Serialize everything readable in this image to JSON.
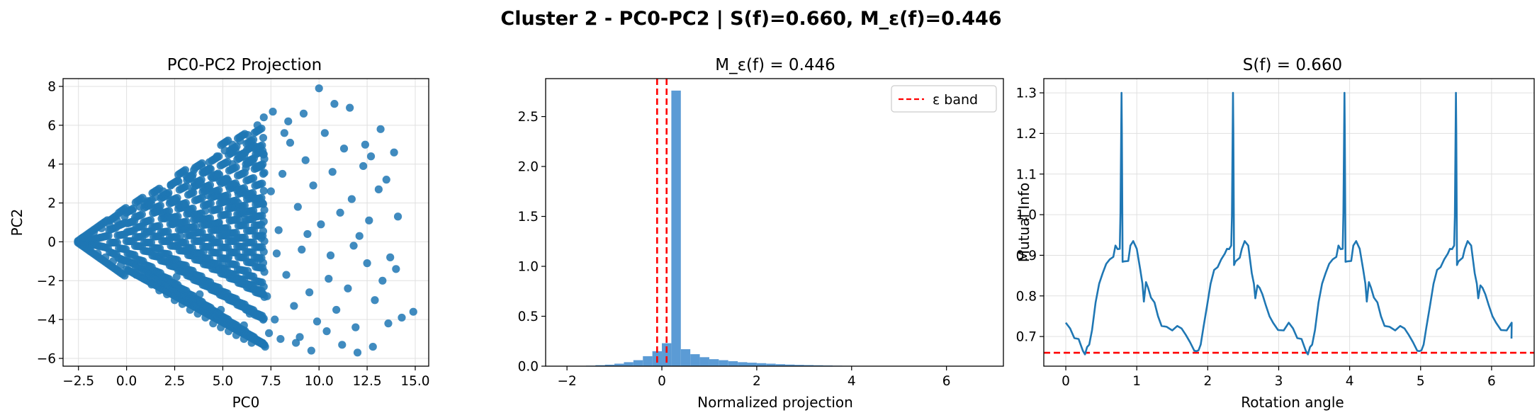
{
  "figure": {
    "title": "Cluster 2 - PC0-PC2 | S(f)=0.660, M_ε(f)=0.446"
  },
  "colors": {
    "series": "#1f77b4",
    "hist": "#5b9bd5",
    "reference": "#ff0000",
    "grid": "#e0e0e0"
  },
  "chart_data": [
    {
      "type": "scatter",
      "title": "PC0-PC2 Projection",
      "xlabel": "PC0",
      "ylabel": "PC2",
      "xlim": [
        -3.3,
        15.7
      ],
      "ylim": [
        -6.4,
        8.4
      ],
      "xticks": [
        -2.5,
        0.0,
        2.5,
        5.0,
        7.5,
        10.0,
        12.5,
        15.0
      ],
      "xtick_labels": [
        "−2.5",
        "0.0",
        "2.5",
        "5.0",
        "7.5",
        "10.0",
        "12.5",
        "15.0"
      ],
      "yticks": [
        -6,
        -4,
        -2,
        0,
        2,
        4,
        6,
        8
      ],
      "ytick_labels": [
        "−6",
        "−4",
        "−2",
        "0",
        "2",
        "4",
        "6",
        "8"
      ],
      "grid": true,
      "points": [
        [
          -2.5,
          0.0
        ],
        [
          -2.3,
          0.2
        ],
        [
          -2.2,
          -0.2
        ],
        [
          -2.0,
          0.3
        ],
        [
          -1.9,
          -0.35
        ],
        [
          -1.7,
          0.5
        ],
        [
          -1.5,
          -0.6
        ],
        [
          -1.3,
          0.7
        ],
        [
          -1.1,
          -0.8
        ],
        [
          -0.9,
          0.9
        ],
        [
          -0.7,
          -1.0
        ],
        [
          -0.5,
          1.1
        ],
        [
          -0.3,
          -1.2
        ],
        [
          -0.1,
          1.3
        ],
        [
          0.1,
          -1.5
        ],
        [
          0.3,
          1.6
        ],
        [
          0.5,
          -1.7
        ],
        [
          0.7,
          1.8
        ],
        [
          0.9,
          -1.9
        ],
        [
          1.1,
          2.1
        ],
        [
          1.3,
          -2.2
        ],
        [
          1.5,
          2.3
        ],
        [
          1.7,
          -2.5
        ],
        [
          1.9,
          2.6
        ],
        [
          2.1,
          -2.7
        ],
        [
          2.3,
          2.9
        ],
        [
          2.5,
          -3.0
        ],
        [
          2.7,
          3.1
        ],
        [
          2.9,
          -3.2
        ],
        [
          3.1,
          3.4
        ],
        [
          3.3,
          -3.5
        ],
        [
          3.5,
          3.7
        ],
        [
          3.7,
          -3.7
        ],
        [
          3.9,
          3.9
        ],
        [
          4.1,
          -3.9
        ],
        [
          4.3,
          4.1
        ],
        [
          4.5,
          -4.2
        ],
        [
          4.7,
          4.4
        ],
        [
          4.9,
          -4.4
        ],
        [
          5.1,
          4.7
        ],
        [
          5.3,
          -4.6
        ],
        [
          5.5,
          5.0
        ],
        [
          5.7,
          -4.8
        ],
        [
          5.9,
          5.2
        ],
        [
          6.1,
          -5.0
        ],
        [
          6.3,
          5.5
        ],
        [
          6.5,
          -5.2
        ],
        [
          6.8,
          6.0
        ],
        [
          7.2,
          -5.4
        ],
        [
          7.6,
          6.7
        ],
        [
          8.0,
          -5.0
        ],
        [
          8.4,
          6.2
        ],
        [
          8.8,
          -5.2
        ],
        [
          9.2,
          6.6
        ],
        [
          9.6,
          -5.6
        ],
        [
          10.0,
          7.9
        ],
        [
          10.4,
          -4.6
        ],
        [
          10.8,
          7.1
        ],
        [
          11.2,
          -5.3
        ],
        [
          11.6,
          6.9
        ],
        [
          12.0,
          -5.7
        ],
        [
          12.4,
          5.0
        ],
        [
          12.8,
          -5.4
        ],
        [
          13.2,
          5.8
        ],
        [
          13.6,
          -4.2
        ],
        [
          13.9,
          4.6
        ],
        [
          14.0,
          -1.4
        ],
        [
          14.1,
          1.3
        ],
        [
          14.3,
          -3.9
        ],
        [
          14.9,
          -3.6
        ],
        [
          1.0,
          0.4
        ],
        [
          1.5,
          -0.6
        ],
        [
          2.0,
          1.2
        ],
        [
          2.2,
          -1.0
        ],
        [
          2.8,
          0.3
        ],
        [
          3.0,
          1.9
        ],
        [
          3.3,
          -1.6
        ],
        [
          3.6,
          0.8
        ],
        [
          4.0,
          -0.5
        ],
        [
          4.2,
          2.4
        ],
        [
          4.4,
          -2.3
        ],
        [
          4.8,
          1.0
        ],
        [
          5.0,
          -1.2
        ],
        [
          5.2,
          3.2
        ],
        [
          5.4,
          -3.0
        ],
        [
          5.6,
          0.2
        ],
        [
          5.8,
          2.0
        ],
        [
          6.0,
          -2.1
        ],
        [
          6.2,
          3.8
        ],
        [
          6.4,
          -3.7
        ],
        [
          6.6,
          1.4
        ],
        [
          6.9,
          -0.9
        ],
        [
          7.1,
          4.5
        ],
        [
          7.3,
          -2.8
        ],
        [
          7.5,
          2.6
        ],
        [
          7.7,
          -4.0
        ],
        [
          7.9,
          0.6
        ],
        [
          8.1,
          3.5
        ],
        [
          8.3,
          -1.7
        ],
        [
          8.5,
          5.1
        ],
        [
          8.7,
          -3.3
        ],
        [
          8.9,
          1.8
        ],
        [
          9.1,
          -0.4
        ],
        [
          9.3,
          4.2
        ],
        [
          9.5,
          -2.6
        ],
        [
          9.7,
          2.9
        ],
        [
          9.9,
          -4.1
        ],
        [
          10.1,
          0.9
        ],
        [
          10.3,
          5.6
        ],
        [
          10.5,
          -1.9
        ],
        [
          10.7,
          3.6
        ],
        [
          10.9,
          -3.5
        ],
        [
          11.1,
          1.5
        ],
        [
          11.3,
          4.8
        ],
        [
          11.5,
          -2.4
        ],
        [
          11.7,
          2.2
        ],
        [
          11.9,
          -4.4
        ],
        [
          12.1,
          0.3
        ],
        [
          12.3,
          3.9
        ],
        [
          12.5,
          -1.1
        ],
        [
          12.7,
          4.4
        ],
        [
          12.9,
          -3.0
        ],
        [
          13.1,
          2.7
        ],
        [
          13.3,
          -2.0
        ],
        [
          13.5,
          3.2
        ],
        [
          13.7,
          -0.8
        ],
        [
          12.6,
          1.1
        ],
        [
          11.8,
          -0.2
        ],
        [
          10.6,
          -0.7
        ],
        [
          9.4,
          0.4
        ],
        [
          3.4,
          2.6
        ],
        [
          3.8,
          -2.7
        ],
        [
          4.6,
          3.3
        ],
        [
          4.9,
          -3.5
        ],
        [
          5.5,
          4.0
        ],
        [
          6.1,
          -4.3
        ],
        [
          6.7,
          4.9
        ],
        [
          7.4,
          -4.7
        ],
        [
          8.2,
          5.6
        ],
        [
          9.0,
          -4.9
        ],
        [
          2.4,
          0.9
        ],
        [
          2.6,
          -1.8
        ],
        [
          3.2,
          -0.4
        ],
        [
          4.1,
          1.6
        ],
        [
          4.5,
          0.1
        ],
        [
          5.3,
          -0.8
        ],
        [
          5.9,
          1.1
        ],
        [
          6.3,
          -1.5
        ],
        [
          7.0,
          0.2
        ],
        [
          7.8,
          -0.6
        ]
      ]
    },
    {
      "type": "bar",
      "title": "M_ε(f) = 0.446",
      "xlabel": "Normalized projection",
      "ylabel": "",
      "xlim": [
        -2.45,
        7.2
      ],
      "ylim": [
        0,
        2.88
      ],
      "xticks": [
        -2,
        0,
        2,
        4,
        6
      ],
      "xtick_labels": [
        "−2",
        "0",
        "2",
        "4",
        "6"
      ],
      "yticks": [
        0.0,
        0.5,
        1.0,
        1.5,
        2.0,
        2.5
      ],
      "ytick_labels": [
        "0.0",
        "0.5",
        "1.0",
        "1.5",
        "2.0",
        "2.5"
      ],
      "grid": false,
      "bin_width": 0.2,
      "bin_starts": [
        -1.6,
        -1.4,
        -1.2,
        -1.0,
        -0.8,
        -0.6,
        -0.4,
        -0.2,
        0.0,
        0.2,
        0.4,
        0.6,
        0.8,
        1.0,
        1.2,
        1.4,
        1.6,
        1.8,
        2.0,
        2.2,
        2.4,
        2.6,
        2.8,
        3.0,
        3.2,
        3.4,
        3.6,
        3.8,
        4.0,
        4.2
      ],
      "values": [
        0.005,
        0.01,
        0.015,
        0.025,
        0.04,
        0.06,
        0.1,
        0.15,
        0.23,
        2.76,
        0.17,
        0.12,
        0.09,
        0.07,
        0.06,
        0.05,
        0.04,
        0.035,
        0.03,
        0.025,
        0.02,
        0.016,
        0.013,
        0.011,
        0.009,
        0.007,
        0.005,
        0.004,
        0.003,
        0.002
      ],
      "epsilon_band": [
        -0.1,
        0.1
      ],
      "legend": {
        "label": "ε band",
        "position": "top-right"
      }
    },
    {
      "type": "line",
      "title": "S(f) = 0.660",
      "xlabel": "Rotation angle",
      "ylabel": "Mutual Info",
      "xlim": [
        -0.31,
        6.6
      ],
      "ylim": [
        0.627,
        1.335
      ],
      "xticks": [
        0,
        1,
        2,
        3,
        4,
        5,
        6
      ],
      "xtick_labels": [
        "0",
        "1",
        "2",
        "3",
        "4",
        "5",
        "6"
      ],
      "yticks": [
        0.7,
        0.8,
        0.9,
        1.0,
        1.1,
        1.2,
        1.3
      ],
      "ytick_labels": [
        "0.7",
        "0.8",
        "0.9",
        "1.0",
        "1.1",
        "1.2",
        "1.3"
      ],
      "grid": true,
      "period": 1.5708,
      "period_profile": {
        "x": [
          0,
          0.06,
          0.12,
          0.18,
          0.24,
          0.27,
          0.3,
          0.33,
          0.37,
          0.42,
          0.47,
          0.52,
          0.57,
          0.62,
          0.67,
          0.7,
          0.73,
          0.76,
          0.77,
          0.785,
          0.79,
          0.8,
          0.82,
          0.88,
          0.91,
          0.95,
          1.0,
          1.05,
          1.08,
          1.1,
          1.13,
          1.16,
          1.2,
          1.25,
          1.3,
          1.35,
          1.42,
          1.5,
          1.5708
        ],
        "y": [
          0.73,
          0.72,
          0.7,
          0.69,
          0.665,
          0.66,
          0.67,
          0.68,
          0.72,
          0.78,
          0.83,
          0.86,
          0.875,
          0.89,
          0.9,
          0.92,
          0.915,
          0.92,
          1.0,
          1.3,
          1.2,
          0.88,
          0.885,
          0.89,
          0.92,
          0.935,
          0.92,
          0.86,
          0.83,
          0.79,
          0.83,
          0.82,
          0.8,
          0.78,
          0.75,
          0.73,
          0.72,
          0.715,
          0.73
        ]
      },
      "x_end": 6.28,
      "end_value": 0.695,
      "reference_line": 0.66
    }
  ]
}
